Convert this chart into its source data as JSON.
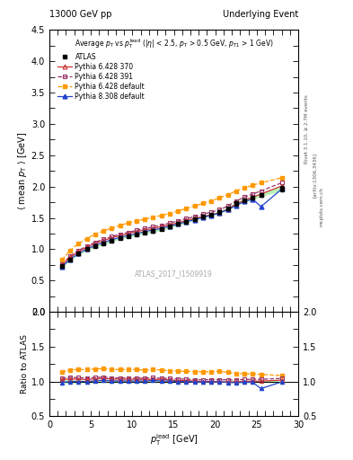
{
  "title_left": "13000 GeV pp",
  "title_right": "Underlying Event",
  "annotation": "ATLAS_2017_I1509919",
  "xlim": [
    0,
    30
  ],
  "ylim_main": [
    0,
    4.5
  ],
  "ylim_ratio": [
    0.5,
    2.0
  ],
  "atlas_x": [
    1.5,
    2.5,
    3.5,
    4.5,
    5.5,
    6.5,
    7.5,
    8.5,
    9.5,
    10.5,
    11.5,
    12.5,
    13.5,
    14.5,
    15.5,
    16.5,
    17.5,
    18.5,
    19.5,
    20.5,
    21.5,
    22.5,
    23.5,
    24.5,
    25.5,
    28.0
  ],
  "atlas_y": [
    0.73,
    0.84,
    0.93,
    1.0,
    1.05,
    1.09,
    1.14,
    1.18,
    1.21,
    1.24,
    1.27,
    1.29,
    1.32,
    1.36,
    1.4,
    1.44,
    1.48,
    1.52,
    1.55,
    1.59,
    1.65,
    1.73,
    1.78,
    1.82,
    1.87,
    1.97
  ],
  "atlas_err": [
    0.02,
    0.02,
    0.02,
    0.02,
    0.02,
    0.02,
    0.02,
    0.02,
    0.02,
    0.02,
    0.02,
    0.02,
    0.02,
    0.02,
    0.02,
    0.02,
    0.02,
    0.02,
    0.02,
    0.02,
    0.03,
    0.03,
    0.03,
    0.03,
    0.03,
    0.04
  ],
  "py6_370_y": [
    0.75,
    0.87,
    0.96,
    1.03,
    1.09,
    1.14,
    1.18,
    1.22,
    1.25,
    1.28,
    1.31,
    1.33,
    1.36,
    1.39,
    1.42,
    1.46,
    1.49,
    1.52,
    1.55,
    1.58,
    1.64,
    1.72,
    1.78,
    1.83,
    1.88,
    2.01
  ],
  "py6_391_y": [
    0.76,
    0.89,
    0.98,
    1.05,
    1.11,
    1.16,
    1.2,
    1.24,
    1.27,
    1.3,
    1.33,
    1.36,
    1.38,
    1.42,
    1.45,
    1.49,
    1.52,
    1.56,
    1.59,
    1.63,
    1.69,
    1.77,
    1.83,
    1.88,
    1.93,
    2.06
  ],
  "py6_def_y": [
    0.83,
    0.98,
    1.09,
    1.17,
    1.24,
    1.29,
    1.34,
    1.38,
    1.42,
    1.45,
    1.48,
    1.51,
    1.54,
    1.57,
    1.61,
    1.65,
    1.69,
    1.73,
    1.77,
    1.82,
    1.87,
    1.93,
    1.98,
    2.02,
    2.06,
    2.14
  ],
  "py8_def_y": [
    0.72,
    0.84,
    0.93,
    1.0,
    1.06,
    1.11,
    1.15,
    1.19,
    1.22,
    1.25,
    1.28,
    1.31,
    1.33,
    1.37,
    1.4,
    1.44,
    1.47,
    1.51,
    1.54,
    1.58,
    1.63,
    1.7,
    1.76,
    1.8,
    1.68,
    1.96
  ],
  "atlas_color": "#000000",
  "py6_370_color": "#cc3333",
  "py6_391_color": "#993366",
  "py6_def_color": "#ff9900",
  "py8_def_color": "#2244cc",
  "green_band_color": "#99ee99"
}
